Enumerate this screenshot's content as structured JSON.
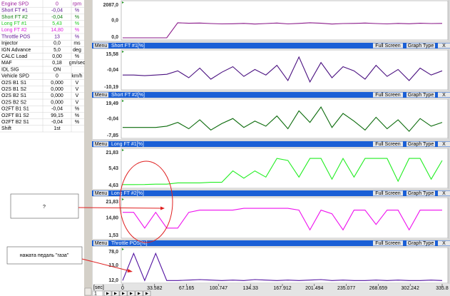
{
  "params": {
    "rows": [
      {
        "name": "Engine SPD",
        "value": "0",
        "unit": "rpm",
        "color": "#9a189a"
      },
      {
        "name": "Short FT #1",
        "value": "-0,04",
        "unit": "%",
        "color": "#5a1090"
      },
      {
        "name": "Short FT #2",
        "value": "-0,04",
        "unit": "%",
        "color": "#128012"
      },
      {
        "name": "Long FT #1",
        "value": "5,43",
        "unit": "%",
        "color": "#22cc22"
      },
      {
        "name": "Long FT #2",
        "value": "14,80",
        "unit": "%",
        "color": "#e020e0"
      },
      {
        "name": "Throttle POS",
        "value": "13",
        "unit": "%",
        "color": "#5a1090"
      },
      {
        "name": "Injector",
        "value": "0,0",
        "unit": "ms",
        "color": "#000000"
      },
      {
        "name": "IGN Advance",
        "value": "5,0",
        "unit": "deg",
        "color": "#000000"
      },
      {
        "name": "CALC Load",
        "value": "0,00",
        "unit": "%",
        "color": "#000000"
      },
      {
        "name": "MAF",
        "value": "0,18",
        "unit": "gm/sec",
        "color": "#000000"
      },
      {
        "name": "IDL SIG",
        "value": "ON",
        "unit": "",
        "color": "#000000"
      },
      {
        "name": "Vehicle SPD",
        "value": "0",
        "unit": "km/h",
        "color": "#000000"
      },
      {
        "name": "O2S B1 S1",
        "value": "0,000",
        "unit": "V",
        "color": "#000000"
      },
      {
        "name": "O2S B1 S2",
        "value": "0,000",
        "unit": "V",
        "color": "#000000"
      },
      {
        "name": "O2S B2 S1",
        "value": "0,000",
        "unit": "V",
        "color": "#000000"
      },
      {
        "name": "O2S B2 S2",
        "value": "0,000",
        "unit": "V",
        "color": "#000000"
      },
      {
        "name": "O2FT B1 S1",
        "value": "-0,04",
        "unit": "%",
        "color": "#000000"
      },
      {
        "name": "O2FT B1 S2",
        "value": "99,15",
        "unit": "%",
        "color": "#000000"
      },
      {
        "name": "O2FT B2 S1",
        "value": "-0,04",
        "unit": "%",
        "color": "#000000"
      },
      {
        "name": "Shift",
        "value": "1st",
        "unit": "",
        "color": "#000000"
      }
    ]
  },
  "buttons": {
    "menu": "Menu",
    "full": "Full Screen",
    "type": "Graph Type",
    "close": "X"
  },
  "graphs": [
    {
      "labels": [
        "2087,0",
        "0,0",
        "0,0"
      ],
      "ylim": [
        0,
        2087
      ],
      "color": "#8a1a8a",
      "trace": [
        0,
        0,
        0,
        0,
        0,
        900,
        870,
        880,
        850,
        830,
        840,
        860,
        820,
        850,
        880,
        830,
        860,
        900,
        870,
        820,
        850,
        860,
        880,
        850,
        830,
        860,
        840,
        870,
        850,
        860
      ]
    },
    {
      "title": "Short FT #1[%]",
      "labels": [
        "15,58",
        "-0,04",
        "-10,19"
      ],
      "ylim": [
        -10.19,
        15.58
      ],
      "color": "#4a1080",
      "trace": [
        -1,
        -1,
        -1.5,
        -1,
        -0.5,
        2,
        -3,
        4,
        -4,
        1,
        5,
        -2,
        3,
        -1,
        6,
        -5,
        12,
        -6,
        8,
        -3,
        5,
        2,
        -4,
        6,
        -2,
        3,
        -5,
        4,
        -1,
        2
      ]
    },
    {
      "title": "Short FT #2[%]",
      "labels": [
        "19,49",
        "-0,04",
        "-7,85"
      ],
      "ylim": [
        -7.85,
        19.49
      ],
      "color": "#0a6a0a",
      "trace": [
        -1,
        -1,
        -1,
        -1,
        0,
        3,
        -2,
        5,
        -3,
        2,
        6,
        -1,
        4,
        0,
        8,
        -2,
        12,
        3,
        15,
        -1,
        10,
        4,
        -3,
        7,
        -2,
        5,
        -4,
        6,
        0,
        3
      ]
    },
    {
      "title": "Long FT #1[%]",
      "labels": [
        "21,83",
        "5,43",
        "4,63"
      ],
      "ylim": [
        4.63,
        21.83
      ],
      "color": "#22ee22",
      "trace": [
        5.4,
        5.4,
        5.43,
        5.6,
        5.6,
        6.2,
        6.2,
        6.2,
        6.5,
        6.5,
        12,
        8.5,
        12,
        9,
        18,
        17,
        9,
        18,
        18,
        8,
        18,
        9,
        18,
        18,
        18,
        7,
        18,
        18,
        8,
        17
      ]
    },
    {
      "title": "Long FT #2[%]",
      "labels": [
        "21,83",
        "14,80",
        "1,53"
      ],
      "ylim": [
        1.53,
        21.83
      ],
      "color": "#ee10ee",
      "trace": [
        14.8,
        14.8,
        6,
        14.8,
        6,
        6,
        14.8,
        16,
        16,
        16,
        16,
        17,
        17,
        17,
        17,
        17,
        16,
        5,
        16,
        14,
        5,
        16,
        16,
        8,
        16,
        16,
        5,
        16,
        16,
        16
      ]
    },
    {
      "title": "Throttle POS[%]",
      "labels": [
        "78,0",
        "13,0",
        "12,0"
      ],
      "ylim": [
        12,
        78
      ],
      "color": "#5010a0",
      "trace": [
        13,
        70,
        13,
        70,
        13,
        13,
        14,
        15,
        14,
        13,
        14,
        13,
        15,
        14,
        13,
        14,
        13,
        14,
        15,
        13,
        14,
        13,
        13,
        14,
        13,
        14,
        13,
        13,
        14,
        13
      ]
    }
  ],
  "x_axis": {
    "unit": "[sec]",
    "ticks": [
      "0",
      "33.582",
      "67.165",
      "100.747",
      "134.33",
      "167.912",
      "201.494",
      "235.077",
      "268.659",
      "302.242",
      "335.8"
    ]
  },
  "spinner": "1",
  "annotations": [
    "?",
    "нажата педаль \"газа\""
  ]
}
